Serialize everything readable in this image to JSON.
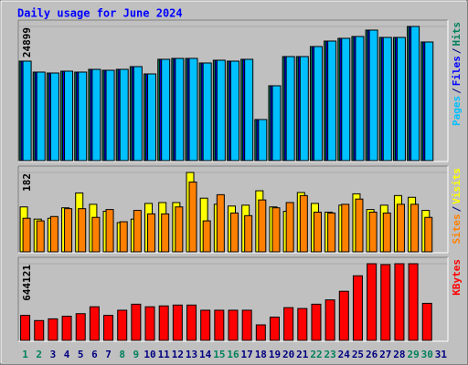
{
  "chart_data": [
    {
      "type": "bar",
      "title": "Daily usage for June 2024",
      "legend_separator": "/",
      "ylim": [
        0,
        24899
      ],
      "yticks": [
        24899
      ],
      "series": [
        {
          "name": "Hits",
          "color": "#00805c",
          "values": [
            18463,
            16430,
            16260,
            16600,
            16430,
            16938,
            16769,
            16938,
            17446,
            16091,
            18802,
            18971,
            18971,
            18124,
            18632,
            18463,
            18802,
            7622,
            13889,
            19310,
            19310,
            21173,
            22189,
            22697,
            23036,
            24222,
            22866,
            22866,
            24899,
            22020,
            null
          ]
        },
        {
          "name": "Files",
          "color": "#0000ff",
          "values": [
            18463,
            16430,
            16260,
            16600,
            16430,
            16938,
            16769,
            16938,
            17446,
            16091,
            18802,
            18971,
            18971,
            18124,
            18632,
            18463,
            18802,
            7622,
            13889,
            19310,
            19310,
            21173,
            22189,
            22697,
            23036,
            24222,
            22866,
            22866,
            24899,
            22020,
            null
          ]
        },
        {
          "name": "Pages",
          "color": "#00c0ff",
          "values": [
            18463,
            16430,
            16260,
            16600,
            16430,
            16938,
            16769,
            16938,
            17446,
            16091,
            18802,
            18971,
            18971,
            18124,
            18632,
            18463,
            18802,
            7622,
            13889,
            19310,
            19310,
            21173,
            22189,
            22697,
            23036,
            24222,
            22866,
            22866,
            24899,
            22020,
            null
          ]
        }
      ]
    },
    {
      "type": "bar",
      "ylim": [
        0,
        182
      ],
      "yticks": [
        182
      ],
      "series": [
        {
          "name": "Visits",
          "color": "#ffff00",
          "values": [
            103,
            75,
            77,
            101,
            135,
            109,
            93,
            67,
            75,
            111,
            113,
            113,
            182,
            123,
            109,
            105,
            107,
            140,
            103,
            93,
            136,
            111,
            91,
            107,
            133,
            97,
            107,
            129,
            125,
            95,
            null
          ]
        },
        {
          "name": "Sites",
          "color": "#ff8000",
          "values": [
            77,
            71,
            81,
            99,
            99,
            79,
            97,
            69,
            95,
            87,
            87,
            103,
            160,
            71,
            131,
            89,
            83,
            119,
            101,
            113,
            129,
            91,
            89,
            109,
            121,
            91,
            89,
            109,
            109,
            79,
            null
          ]
        }
      ]
    },
    {
      "type": "bar",
      "ylim": [
        0,
        644121
      ],
      "yticks": [
        644121
      ],
      "categories": [
        "1",
        "2",
        "3",
        "4",
        "5",
        "6",
        "7",
        "8",
        "9",
        "10",
        "11",
        "12",
        "13",
        "14",
        "15",
        "16",
        "17",
        "18",
        "19",
        "20",
        "21",
        "22",
        "23",
        "24",
        "25",
        "26",
        "27",
        "28",
        "29",
        "30",
        "31"
      ],
      "label_colors": [
        "#00805c",
        "#00805c",
        "#000080",
        "#000080",
        "#000080",
        "#000080",
        "#000080",
        "#00805c",
        "#00805c",
        "#000080",
        "#000080",
        "#000080",
        "#000080",
        "#000080",
        "#00805c",
        "#00805c",
        "#000080",
        "#000080",
        "#000080",
        "#000080",
        "#000080",
        "#00805c",
        "#00805c",
        "#000080",
        "#000080",
        "#000080",
        "#000080",
        "#000080",
        "#00805c",
        "#00805c",
        "#000080"
      ],
      "series": [
        {
          "name": "KBytes",
          "color": "#ff0000",
          "values": [
            209877,
            166451,
            180925,
            202636,
            224347,
            282245,
            209877,
            253295,
            303954,
            282245,
            289480,
            296717,
            296717,
            253295,
            253295,
            253295,
            253295,
            130266,
            195399,
            275006,
            267769,
            303954,
            340139,
            412509,
            542775,
            644121,
            636884,
            644121,
            644121,
            311191,
            null
          ]
        }
      ]
    }
  ]
}
